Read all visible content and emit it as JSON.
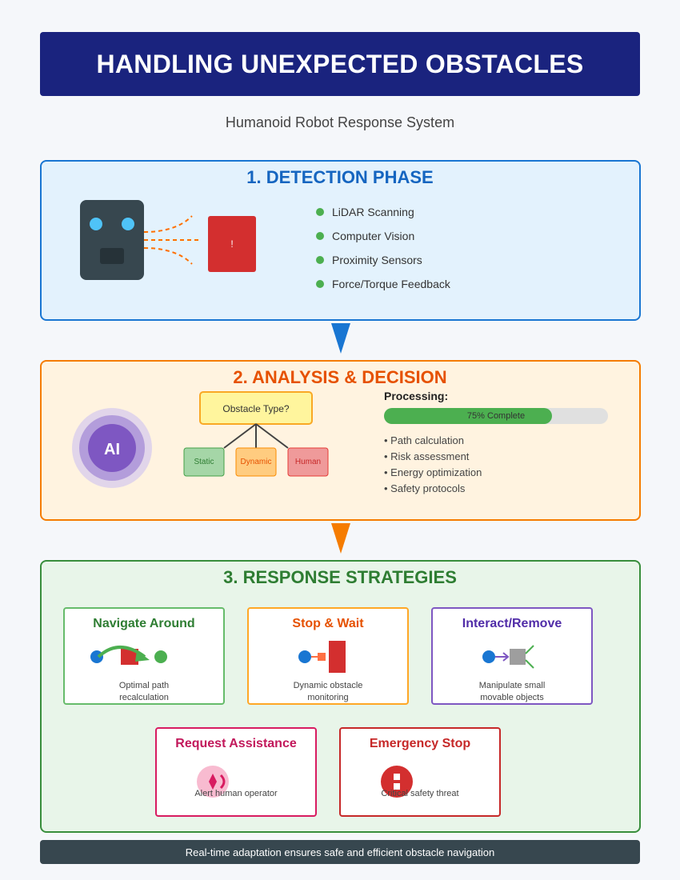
{
  "header": {
    "title": "HANDLING UNEXPECTED OBSTACLES",
    "subtitle": "Humanoid Robot Response System"
  },
  "detection": {
    "title": "1. DETECTION PHASE",
    "alert_symbol": "!",
    "sensors": [
      "LiDAR Scanning",
      "Computer Vision",
      "Proximity Sensors",
      "Force/Torque Feedback"
    ]
  },
  "analysis": {
    "title": "2. ANALYSIS & DECISION",
    "ai_label": "AI",
    "decision_label": "Obstacle Type?",
    "types": [
      "Static",
      "Dynamic",
      "Human"
    ],
    "processing_label": "Processing:",
    "progress": 0.75,
    "progress_text": "75% Complete",
    "tasks": [
      "• Path calculation",
      "• Risk assessment",
      "• Energy optimization",
      "• Safety protocols"
    ]
  },
  "response": {
    "title": "3. RESPONSE STRATEGIES",
    "strategies": [
      {
        "title": "Navigate Around",
        "desc": [
          "Optimal path",
          "recalculation"
        ],
        "color": "#388e3c"
      },
      {
        "title": "Stop & Wait",
        "desc": [
          "Dynamic obstacle",
          "monitoring"
        ],
        "color": "#e65100"
      },
      {
        "title": "Interact/Remove",
        "desc": [
          "Manipulate small",
          "movable objects"
        ],
        "color": "#512da8"
      },
      {
        "title": "Request Assistance",
        "desc": [
          "Alert human operator"
        ],
        "color": "#c2185b"
      },
      {
        "title": "Emergency Stop",
        "desc": [
          "Critical safety threat"
        ],
        "color": "#c62828"
      }
    ]
  },
  "footer": {
    "text": "Real-time adaptation ensures safe and efficient obstacle navigation"
  },
  "colors": {
    "banner": "#1a237e",
    "detection": "#1976d2",
    "analysis": "#f57c00",
    "response": "#388e3c"
  }
}
